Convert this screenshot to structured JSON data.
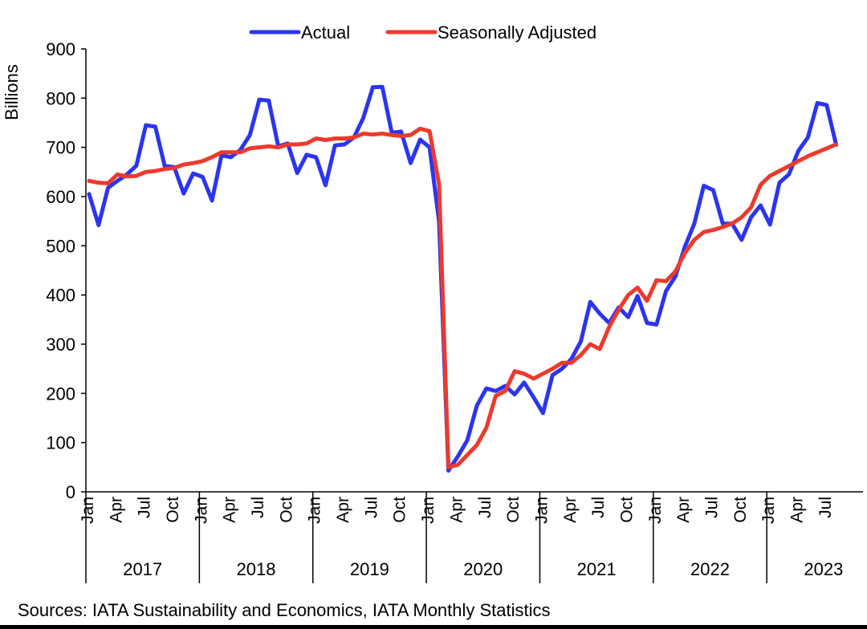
{
  "chart_data": {
    "type": "line",
    "ylabel": "Billions",
    "ylim": [
      0,
      900
    ],
    "yticks": [
      "0",
      "100",
      "200",
      "300",
      "400",
      "500",
      "600",
      "700",
      "800",
      "900"
    ],
    "month_labels": [
      "Jan",
      "Apr",
      "Jul",
      "Oct"
    ],
    "years": [
      "2017",
      "2018",
      "2019",
      "2020",
      "2021",
      "2022",
      "2023"
    ],
    "legend": "top-center",
    "grid": false,
    "series": [
      {
        "name": "Actual",
        "color": "#2b35f0",
        "values": [
          605,
          542,
          618,
          632,
          645,
          663,
          745,
          742,
          662,
          660,
          606,
          647,
          640,
          592,
          684,
          680,
          695,
          725,
          797,
          795,
          702,
          708,
          648,
          685,
          680,
          623,
          704,
          706,
          720,
          760,
          822,
          823,
          730,
          732,
          668,
          716,
          700,
          550,
          43,
          72,
          105,
          175,
          210,
          205,
          215,
          198,
          222,
          192,
          160,
          237,
          250,
          270,
          306,
          386,
          362,
          343,
          375,
          355,
          398,
          343,
          340,
          408,
          438,
          498,
          545,
          622,
          613,
          545,
          545,
          512,
          558,
          582,
          543,
          628,
          645,
          693,
          720,
          790,
          786,
          705
        ]
      },
      {
        "name": "Seasonally Adjusted",
        "color": "#ec3a2c",
        "values": [
          632,
          628,
          627,
          645,
          641,
          642,
          650,
          652,
          656,
          658,
          665,
          668,
          672,
          680,
          690,
          690,
          690,
          698,
          700,
          702,
          700,
          706,
          706,
          708,
          718,
          715,
          718,
          718,
          720,
          728,
          726,
          728,
          725,
          723,
          725,
          738,
          733,
          625,
          50,
          55,
          75,
          95,
          130,
          195,
          205,
          245,
          240,
          230,
          240,
          250,
          262,
          262,
          278,
          300,
          290,
          335,
          370,
          400,
          415,
          388,
          430,
          428,
          448,
          485,
          512,
          528,
          532,
          538,
          545,
          558,
          578,
          624,
          642,
          652,
          662,
          672,
          682,
          690,
          698,
          706
        ]
      }
    ]
  },
  "footer": {
    "source": "Sources: IATA Sustainability and Economics, IATA Monthly Statistics"
  }
}
